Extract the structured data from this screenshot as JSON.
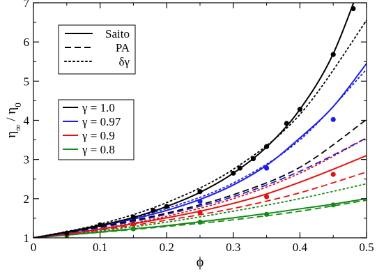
{
  "chart_data": {
    "type": "line",
    "xlabel": "ϕ",
    "ylabel_main": "η",
    "ylabel_sub1": "∞",
    "ylabel_sep": " / η",
    "ylabel_sub2": "0",
    "xlim": [
      0,
      0.5
    ],
    "ylim": [
      1,
      7
    ],
    "x_ticks": [
      0,
      0.1,
      0.2,
      0.3,
      0.4,
      0.5
    ],
    "x_tick_labels": [
      "0",
      "0.1",
      "0.2",
      "0.3",
      "0.4",
      "0.5"
    ],
    "y_ticks": [
      1,
      2,
      3,
      4,
      5,
      6,
      7
    ],
    "y_tick_labels": [
      "1",
      "2",
      "3",
      "4",
      "5",
      "6",
      "7"
    ],
    "grid": false,
    "style_legend": {
      "placement": "top-left",
      "entries": [
        {
          "label": "Saito",
          "dash": "solid"
        },
        {
          "label": "PA",
          "dash": "dashed"
        },
        {
          "label": "δγ",
          "dash": "dotted"
        }
      ]
    },
    "color_legend": {
      "placement": "left",
      "entries": [
        {
          "label": "γ = 1.0",
          "color": "#000000"
        },
        {
          "label": "γ = 0.97",
          "color": "#1f1fe0"
        },
        {
          "label": "γ = 0.9",
          "color": "#e31212"
        },
        {
          "label": "γ = 0.8",
          "color": "#168a16"
        }
      ]
    },
    "series": [
      {
        "gamma": "1.0",
        "color": "#000000",
        "saito": {
          "x": [
            0,
            0.05,
            0.1,
            0.15,
            0.2,
            0.25,
            0.3,
            0.35,
            0.4,
            0.45,
            0.5
          ],
          "y": [
            1.0,
            1.15,
            1.32,
            1.52,
            1.8,
            2.16,
            2.65,
            3.32,
            4.28,
            5.7,
            7.9
          ]
        },
        "pa": {
          "x": [
            0,
            0.1,
            0.2,
            0.3,
            0.4,
            0.5
          ],
          "y": [
            1.0,
            1.28,
            1.63,
            2.1,
            2.8,
            4.02
          ]
        },
        "dg": {
          "x": [
            0,
            0.1,
            0.2,
            0.3,
            0.4,
            0.5
          ],
          "y": [
            1.0,
            1.35,
            1.9,
            2.75,
            4.15,
            6.55
          ]
        },
        "points": {
          "x": [
            0.05,
            0.1,
            0.15,
            0.18,
            0.2,
            0.25,
            0.3,
            0.31,
            0.33,
            0.35,
            0.38,
            0.4,
            0.45,
            0.48
          ],
          "y": [
            1.12,
            1.33,
            1.53,
            1.7,
            1.8,
            2.18,
            2.65,
            2.78,
            3.02,
            3.33,
            3.92,
            4.28,
            5.68,
            6.85
          ]
        }
      },
      {
        "gamma": "0.97",
        "color": "#1f1fe0",
        "saito": {
          "x": [
            0,
            0.05,
            0.1,
            0.15,
            0.2,
            0.25,
            0.3,
            0.35,
            0.4,
            0.45,
            0.5
          ],
          "y": [
            1.0,
            1.13,
            1.3,
            1.48,
            1.7,
            1.98,
            2.35,
            2.85,
            3.55,
            4.35,
            5.45
          ]
        },
        "pa": {
          "x": [
            0,
            0.1,
            0.2,
            0.3,
            0.4,
            0.5
          ],
          "y": [
            1.0,
            1.26,
            1.6,
            2.05,
            2.7,
            3.55
          ]
        },
        "dg": {
          "x": [
            0,
            0.1,
            0.2,
            0.3,
            0.4,
            0.5
          ],
          "y": [
            1.0,
            1.3,
            1.75,
            2.4,
            3.5,
            5.3
          ]
        },
        "points": {
          "x": [
            0.05,
            0.15,
            0.25,
            0.35,
            0.45
          ],
          "y": [
            1.12,
            1.46,
            1.93,
            2.78,
            4.02
          ]
        }
      },
      {
        "gamma": "0.9",
        "color": "#e31212",
        "saito": {
          "x": [
            0,
            0.05,
            0.1,
            0.15,
            0.2,
            0.25,
            0.3,
            0.35,
            0.4,
            0.45,
            0.5
          ],
          "y": [
            1.0,
            1.1,
            1.22,
            1.36,
            1.51,
            1.68,
            1.88,
            2.12,
            2.42,
            2.75,
            3.1
          ]
        },
        "pa": {
          "x": [
            0,
            0.1,
            0.2,
            0.3,
            0.4,
            0.5
          ],
          "y": [
            1.0,
            1.2,
            1.45,
            1.75,
            2.15,
            2.68
          ]
        },
        "dg": {
          "x": [
            0,
            0.1,
            0.2,
            0.3,
            0.4,
            0.5
          ],
          "y": [
            1.0,
            1.23,
            1.55,
            2.0,
            2.65,
            3.55
          ]
        },
        "points": {
          "x": [
            0.05,
            0.15,
            0.25,
            0.35,
            0.45
          ],
          "y": [
            1.09,
            1.36,
            1.65,
            2.05,
            2.62
          ]
        }
      },
      {
        "gamma": "0.8",
        "color": "#168a16",
        "saito": {
          "x": [
            0,
            0.05,
            0.1,
            0.15,
            0.2,
            0.25,
            0.3,
            0.35,
            0.4,
            0.45,
            0.5
          ],
          "y": [
            1.0,
            1.07,
            1.15,
            1.23,
            1.31,
            1.41,
            1.51,
            1.62,
            1.74,
            1.86,
            2.0
          ]
        },
        "pa": {
          "x": [
            0,
            0.1,
            0.2,
            0.3,
            0.4,
            0.5
          ],
          "y": [
            1.0,
            1.14,
            1.29,
            1.46,
            1.68,
            1.96
          ]
        },
        "dg": {
          "x": [
            0,
            0.1,
            0.2,
            0.3,
            0.4,
            0.5
          ],
          "y": [
            1.0,
            1.18,
            1.4,
            1.68,
            2.0,
            2.38
          ]
        },
        "points": {
          "x": [
            0.05,
            0.15,
            0.25,
            0.35,
            0.45
          ],
          "y": [
            1.06,
            1.23,
            1.4,
            1.6,
            1.84
          ]
        }
      }
    ]
  }
}
